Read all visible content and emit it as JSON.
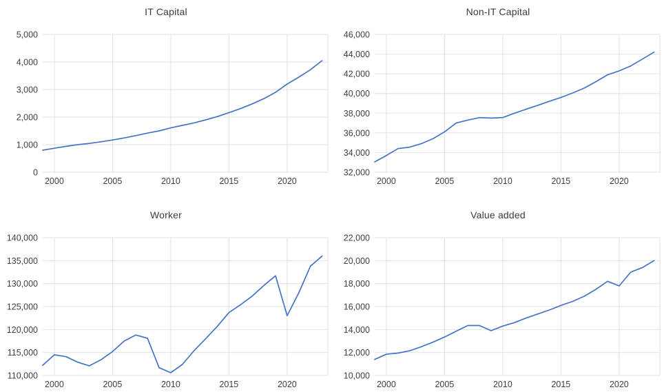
{
  "style": {
    "line_color": "#4472C4",
    "grid_color": "#E2E2E2",
    "label_color": "#404040",
    "background": "#ffffff"
  },
  "chart_data": [
    {
      "type": "line",
      "title": "IT Capital",
      "xlabel": "",
      "ylabel": "",
      "grid": true,
      "legend": "none",
      "xlim": [
        1999,
        2023.5
      ],
      "ylim": [
        0,
        5000
      ],
      "ytick_step": 1000,
      "xticks": [
        2000,
        2005,
        2010,
        2015,
        2020
      ],
      "x": [
        1999,
        2000,
        2001,
        2002,
        2003,
        2004,
        2005,
        2006,
        2007,
        2008,
        2009,
        2010,
        2011,
        2012,
        2013,
        2014,
        2015,
        2016,
        2017,
        2018,
        2019,
        2020,
        2021,
        2022,
        2023
      ],
      "values": [
        800,
        870,
        940,
        1000,
        1045,
        1105,
        1170,
        1245,
        1330,
        1420,
        1500,
        1610,
        1700,
        1790,
        1900,
        2020,
        2160,
        2310,
        2480,
        2670,
        2900,
        3200,
        3450,
        3720,
        4050
      ]
    },
    {
      "type": "line",
      "title": "Non-IT Capital",
      "xlabel": "",
      "ylabel": "",
      "grid": true,
      "legend": "none",
      "xlim": [
        1999,
        2023.5
      ],
      "ylim": [
        32000,
        46000
      ],
      "ytick_step": 2000,
      "xticks": [
        2000,
        2005,
        2010,
        2015,
        2020
      ],
      "x": [
        1999,
        2000,
        2001,
        2002,
        2003,
        2004,
        2005,
        2006,
        2007,
        2008,
        2009,
        2010,
        2011,
        2012,
        2013,
        2014,
        2015,
        2016,
        2017,
        2018,
        2019,
        2020,
        2021,
        2022,
        2023
      ],
      "values": [
        33050,
        33700,
        34400,
        34550,
        34900,
        35400,
        36100,
        37000,
        37300,
        37550,
        37500,
        37550,
        38000,
        38400,
        38800,
        39200,
        39600,
        40050,
        40550,
        41200,
        41900,
        42300,
        42800,
        43500,
        44200
      ]
    },
    {
      "type": "line",
      "title": "Worker",
      "xlabel": "",
      "ylabel": "",
      "grid": true,
      "legend": "none",
      "xlim": [
        1999,
        2023.5
      ],
      "ylim": [
        110000,
        140000
      ],
      "ytick_step": 5000,
      "xticks": [
        2000,
        2005,
        2010,
        2015,
        2020
      ],
      "x": [
        1999,
        2000,
        2001,
        2002,
        2003,
        2004,
        2005,
        2006,
        2007,
        2008,
        2009,
        2010,
        2011,
        2012,
        2013,
        2014,
        2015,
        2016,
        2017,
        2018,
        2019,
        2020,
        2021,
        2022,
        2023
      ],
      "values": [
        112200,
        114500,
        114100,
        112900,
        112100,
        113400,
        115200,
        117500,
        118800,
        118100,
        111700,
        110600,
        112400,
        115400,
        118000,
        120700,
        123700,
        125400,
        127300,
        129600,
        131700,
        123000,
        128000,
        133800,
        136000
      ]
    },
    {
      "type": "line",
      "title": "Value added",
      "xlabel": "",
      "ylabel": "",
      "grid": true,
      "legend": "none",
      "xlim": [
        1999,
        2023.5
      ],
      "ylim": [
        10000,
        22000
      ],
      "ytick_step": 2000,
      "xticks": [
        2000,
        2005,
        2010,
        2015,
        2020
      ],
      "x": [
        1999,
        2000,
        2001,
        2002,
        2003,
        2004,
        2005,
        2006,
        2007,
        2008,
        2009,
        2010,
        2011,
        2012,
        2013,
        2014,
        2015,
        2016,
        2017,
        2018,
        2019,
        2020,
        2021,
        2022,
        2023
      ],
      "values": [
        11400,
        11850,
        11950,
        12150,
        12500,
        12900,
        13350,
        13850,
        14350,
        14350,
        13900,
        14300,
        14600,
        15000,
        15350,
        15700,
        16100,
        16450,
        16900,
        17500,
        18200,
        17800,
        19000,
        19400,
        20000
      ]
    }
  ]
}
